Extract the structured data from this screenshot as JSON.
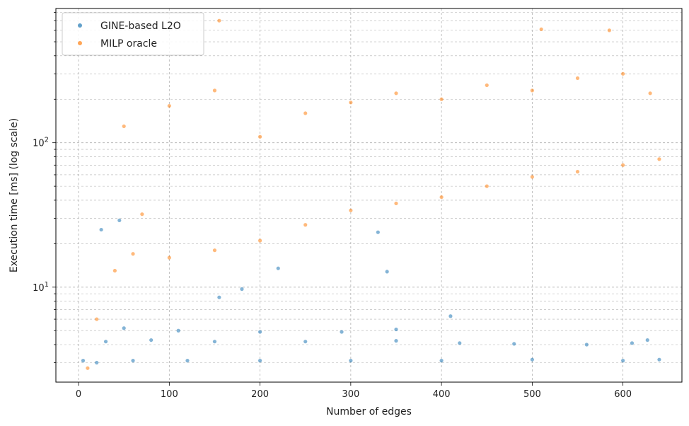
{
  "chart_data": {
    "type": "scatter",
    "title": "",
    "xlabel": "Number of edges",
    "ylabel": "Execution time [ms] (log scale)",
    "xlim": [
      -25,
      665
    ],
    "ylim": [
      2.2,
      850
    ],
    "yscale": "log",
    "grid": true,
    "legend_position": "top-left",
    "x_ticks": [
      0,
      100,
      200,
      300,
      400,
      500,
      600
    ],
    "x_tick_labels": [
      "0",
      "100",
      "200",
      "300",
      "400",
      "500",
      "600"
    ],
    "y_ticks": [
      10,
      100
    ],
    "y_tick_labels": [
      "10^1",
      "10^2"
    ],
    "series": [
      {
        "name": "GINE-based L2O",
        "color": "#1f77b4",
        "points": [
          [
            5,
            3.1
          ],
          [
            20,
            3.0
          ],
          [
            60,
            3.1
          ],
          [
            120,
            3.1
          ],
          [
            200,
            3.1
          ],
          [
            300,
            3.1
          ],
          [
            400,
            3.1
          ],
          [
            500,
            3.15
          ],
          [
            600,
            3.1
          ],
          [
            640,
            3.15
          ],
          [
            30,
            4.2
          ],
          [
            80,
            4.3
          ],
          [
            150,
            4.2
          ],
          [
            250,
            4.2
          ],
          [
            350,
            4.25
          ],
          [
            420,
            4.1
          ],
          [
            480,
            4.05
          ],
          [
            560,
            4.0
          ],
          [
            610,
            4.1
          ],
          [
            627,
            4.3
          ],
          [
            50,
            5.2
          ],
          [
            110,
            5.0
          ],
          [
            200,
            4.9
          ],
          [
            290,
            4.9
          ],
          [
            350,
            5.1
          ],
          [
            25,
            25.0
          ],
          [
            45,
            29.0
          ],
          [
            155,
            8.5
          ],
          [
            180,
            9.7
          ],
          [
            220,
            13.5
          ],
          [
            330,
            24.0
          ],
          [
            340,
            12.8
          ],
          [
            410,
            6.3
          ]
        ]
      },
      {
        "name": "MILP oracle",
        "color": "#ff7f0e",
        "points": [
          [
            10,
            2.75
          ],
          [
            20,
            6.0
          ],
          [
            40,
            13.0
          ],
          [
            60,
            17.0
          ],
          [
            70,
            32.0
          ],
          [
            100,
            16.0
          ],
          [
            150,
            18.0
          ],
          [
            200,
            21.0
          ],
          [
            250,
            27.0
          ],
          [
            300,
            34.0
          ],
          [
            350,
            38.0
          ],
          [
            400,
            42.0
          ],
          [
            450,
            50.0
          ],
          [
            500,
            58.0
          ],
          [
            550,
            63.0
          ],
          [
            600,
            70.0
          ],
          [
            640,
            77.0
          ],
          [
            50,
            130.0
          ],
          [
            100,
            180.0
          ],
          [
            150,
            230.0
          ],
          [
            200,
            110.0
          ],
          [
            250,
            160.0
          ],
          [
            300,
            190.0
          ],
          [
            350,
            220.0
          ],
          [
            400,
            200.0
          ],
          [
            450,
            250.0
          ],
          [
            500,
            230.0
          ],
          [
            550,
            280.0
          ],
          [
            600,
            300.0
          ],
          [
            630,
            220.0
          ],
          [
            155,
            700.0
          ],
          [
            510,
            610.0
          ],
          [
            585,
            600.0
          ]
        ]
      }
    ]
  }
}
